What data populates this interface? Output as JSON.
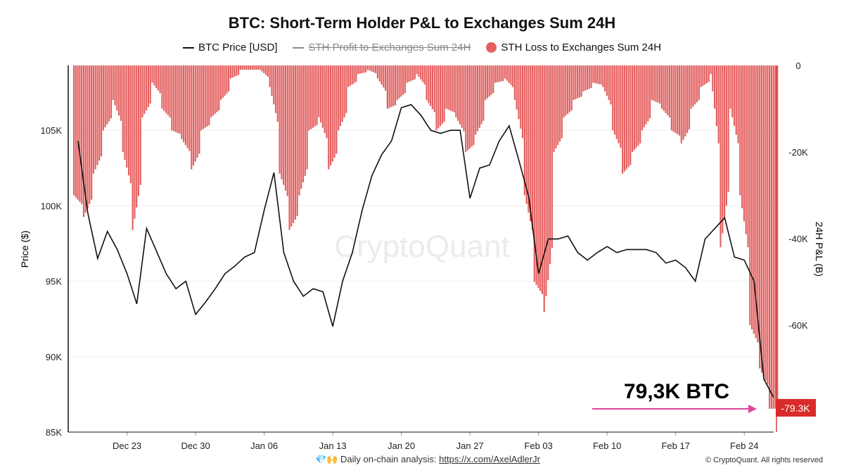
{
  "chart_data": {
    "type": "bar+line",
    "title": "BTC: Short-Term Holder P&L to Exchanges Sum 24H",
    "legend": [
      {
        "name": "BTC Price [USD]",
        "color": "#111111",
        "hidden": false
      },
      {
        "name": "STH Profit to Exchanges Sum 24H",
        "color": "#888888",
        "hidden": true
      },
      {
        "name": "STH Loss to Exchanges Sum 24H",
        "color": "#e46060",
        "hidden": false
      }
    ],
    "legend_placement": "top-center",
    "ylabel_left": "Price ($)",
    "ylabel_right": "24H P&L (B)",
    "ylim_left": [
      85000,
      109300
    ],
    "ylim_right": [
      -84700,
      0
    ],
    "yticks_left": [
      "85K",
      "90K",
      "95K",
      "100K",
      "105K"
    ],
    "yticks_left_values": [
      85000,
      90000,
      95000,
      100000,
      105000
    ],
    "yticks_right": [
      "0",
      "-20K",
      "-40K",
      "-60K"
    ],
    "yticks_right_values": [
      0,
      -20000,
      -40000,
      -60000
    ],
    "xticks": [
      "Dec 23",
      "Dec 30",
      "Jan 06",
      "Jan 13",
      "Jan 20",
      "Jan 27",
      "Feb 03",
      "Feb 10",
      "Feb 17",
      "Feb 24"
    ],
    "xticks_dates": [
      "2024-12-23",
      "2024-12-30",
      "2025-01-06",
      "2025-01-13",
      "2025-01-20",
      "2025-01-27",
      "2025-02-03",
      "2025-02-10",
      "2025-02-17",
      "2025-02-24"
    ],
    "xlim": [
      "2024-12-17",
      "2025-02-27"
    ],
    "start_date": "2024-12-18",
    "price": [
      104300,
      99500,
      96500,
      98300,
      97100,
      95500,
      93500,
      98500,
      97000,
      95500,
      94500,
      95000,
      92800,
      93600,
      94500,
      95500,
      96000,
      96600,
      96900,
      99700,
      102200,
      96900,
      95000,
      94000,
      94500,
      94300,
      92000,
      95000,
      96900,
      99700,
      102000,
      103400,
      104300,
      106500,
      106700,
      106000,
      105000,
      104800,
      105000,
      105000,
      100500,
      102500,
      102700,
      104300,
      105300,
      103000,
      100600,
      95500,
      97800,
      97800,
      98000,
      96900,
      96400,
      96900,
      97300,
      96900,
      97100,
      97100,
      97100,
      96900,
      96200,
      96400,
      95900,
      95000,
      97800,
      98500,
      99200,
      96600,
      96400,
      95000,
      88500,
      87300
    ],
    "sth_loss": [
      -30000,
      -35000,
      -25000,
      -15000,
      -8000,
      -20000,
      -38000,
      -12000,
      -4000,
      -10000,
      -15000,
      -17000,
      -24000,
      -15000,
      -12000,
      -8000,
      -3000,
      -1000,
      -1000,
      -1000,
      -5000,
      -25000,
      -38000,
      -30000,
      -15000,
      -12000,
      -24000,
      -15000,
      -5000,
      -2000,
      -1000,
      -3000,
      -10000,
      -8000,
      -4000,
      -2000,
      -8000,
      -15000,
      -10000,
      -12000,
      -20000,
      -16000,
      -8000,
      -4000,
      -3000,
      -8000,
      -30000,
      -50000,
      -57000,
      -20000,
      -12000,
      -8000,
      -6000,
      -4000,
      -5000,
      -15000,
      -25000,
      -20000,
      -15000,
      -8000,
      -10000,
      -15000,
      -18000,
      -10000,
      -5000,
      -2000,
      -42000,
      -10000,
      -30000,
      -60000,
      -70000,
      -79300
    ],
    "last_value_label": "-79.3K",
    "annotation": "79,3K BTC",
    "watermark": "CryptoQuant",
    "colors": {
      "price": "#111111",
      "loss": "#e46060",
      "last_value_box": "#d92b2b",
      "arrow": "#e0459b",
      "axis_right": "#d94040"
    }
  },
  "footer": {
    "prefix": "💎🙌 Daily on-chain analysis: ",
    "link": "https://x.com/AxelAdlerJr",
    "copyright": "© CryptoQuant. All rights reserved"
  }
}
